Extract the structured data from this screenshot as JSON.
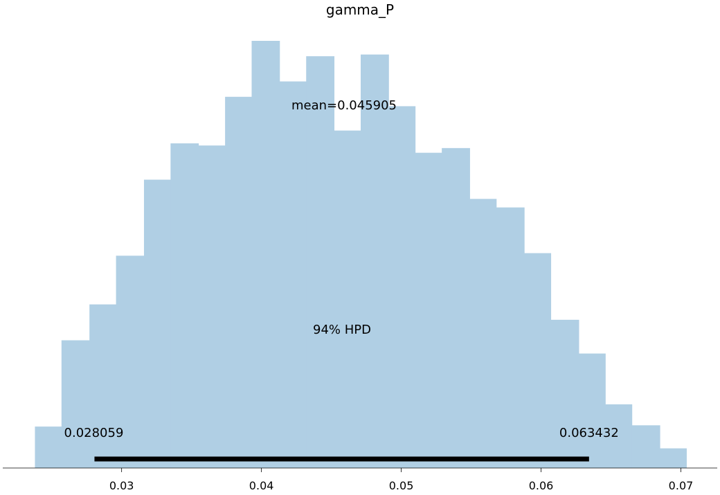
{
  "chart_data": {
    "type": "bar",
    "title": "gamma_P",
    "xlabel": "",
    "ylabel": "",
    "xlim": [
      0.0215,
      0.0726
    ],
    "ylim": [
      0,
      1
    ],
    "bin_edges": [
      0.0238,
      0.0257,
      0.0277,
      0.0296,
      0.0316,
      0.0335,
      0.0355,
      0.0374,
      0.0393,
      0.0413,
      0.0432,
      0.0452,
      0.0471,
      0.0491,
      0.051,
      0.0529,
      0.0549,
      0.0568,
      0.0588,
      0.0607,
      0.0627,
      0.0646,
      0.0665,
      0.0685,
      0.0704
    ],
    "values": [
      0.097,
      0.299,
      0.383,
      0.497,
      0.675,
      0.76,
      0.755,
      0.869,
      1.0,
      0.905,
      0.964,
      0.79,
      0.968,
      0.847,
      0.738,
      0.749,
      0.63,
      0.61,
      0.503,
      0.347,
      0.268,
      0.149,
      0.1,
      0.046
    ],
    "bar_color": "#b0cfe4",
    "xticks": [
      0.03,
      0.04,
      0.05,
      0.06,
      0.07
    ],
    "xtick_labels": [
      "0.03",
      "0.04",
      "0.05",
      "0.06",
      "0.07"
    ],
    "mean_label": "mean=0.045905",
    "hpd": {
      "label": "94% HPD",
      "low": 0.028059,
      "high": 0.063432,
      "low_label": "0.028059",
      "high_label": "0.063432",
      "color": "#000000"
    },
    "grid": false,
    "spines": [
      "bottom"
    ]
  }
}
